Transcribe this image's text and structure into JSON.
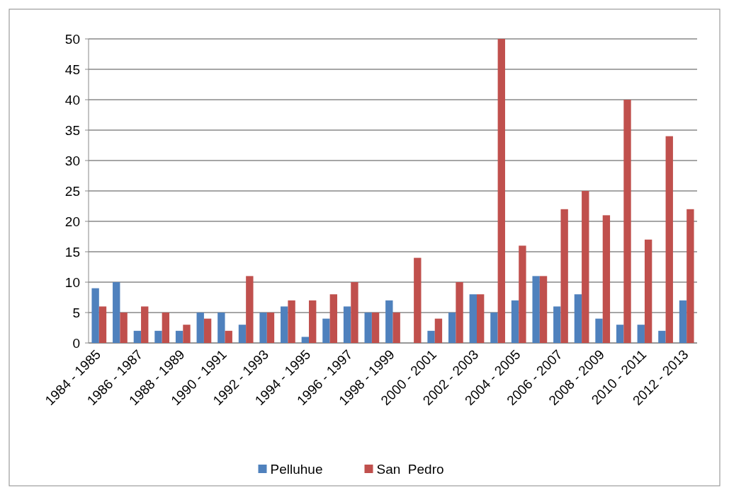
{
  "chart_data": {
    "type": "bar",
    "categories": [
      "1984 - 1985",
      null,
      "1986 - 1987",
      null,
      "1988 - 1989",
      null,
      "1990 - 1991",
      null,
      "1992 - 1993",
      null,
      "1994 - 1995",
      null,
      "1996 - 1997",
      null,
      "1998 - 1999",
      null,
      "2000 - 2001",
      null,
      "2002 - 2003",
      null,
      "2004 - 2005",
      null,
      "2006 - 2007",
      null,
      "2008 - 2009",
      null,
      "2010 - 2011",
      null,
      "2012 - 2013"
    ],
    "series": [
      {
        "name": "Pelluhue",
        "color": "#4f81bd",
        "values": [
          9,
          10,
          2,
          2,
          2,
          5,
          5,
          3,
          5,
          6,
          1,
          4,
          6,
          5,
          7,
          0,
          2,
          5,
          8,
          5,
          7,
          11,
          6,
          8,
          4,
          3,
          3,
          2,
          7
        ]
      },
      {
        "name": "San  Pedro",
        "color": "#c0504d",
        "values": [
          6,
          5,
          6,
          5,
          3,
          4,
          2,
          11,
          5,
          7,
          7,
          8,
          10,
          5,
          5,
          14,
          4,
          10,
          8,
          50,
          16,
          11,
          22,
          25,
          21,
          40,
          17,
          34,
          22
        ]
      }
    ],
    "ylim": [
      0,
      50
    ],
    "yticks": [
      0,
      5,
      10,
      15,
      20,
      25,
      30,
      35,
      40,
      45,
      50
    ],
    "grid": "y",
    "legend": "bottom"
  }
}
